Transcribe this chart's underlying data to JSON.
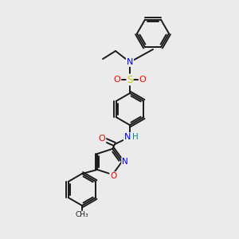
{
  "background_color": "#ebebeb",
  "bond_color": "#1a1a1a",
  "atom_colors": {
    "N": "#0000ff",
    "O": "#ff0000",
    "S": "#cccc00",
    "NH": "#0000ff",
    "H": "#008b8b",
    "C": "#1a1a1a"
  },
  "figsize": [
    3.0,
    3.0
  ],
  "dpi": 100
}
